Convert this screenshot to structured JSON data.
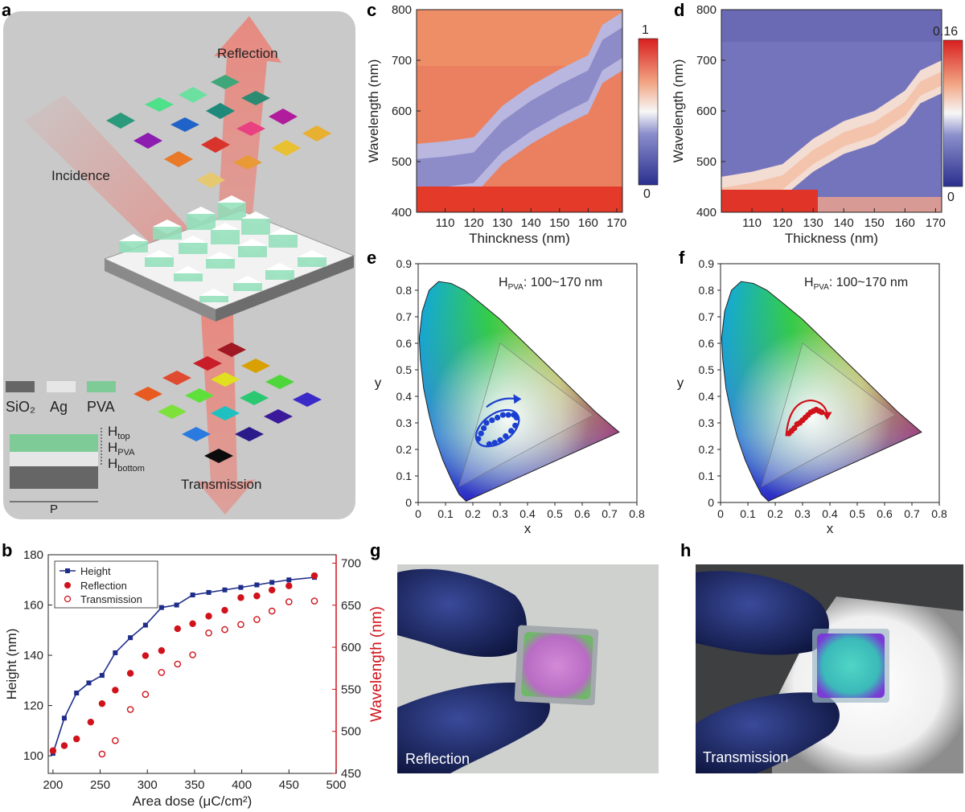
{
  "panels": {
    "a": {
      "label": "a",
      "arrows": {
        "reflection": "Reflection",
        "incidence": "Incidence",
        "transmission": "Transmission"
      },
      "legend": {
        "sio2": "SiO₂",
        "ag": "Ag",
        "pva": "PVA"
      },
      "layers": {
        "h_top": "H",
        "h_top_sub": "top",
        "h_pva": "H",
        "h_pva_sub": "PVA",
        "h_bottom": "H",
        "h_bottom_sub": "bottom",
        "period": "P"
      },
      "colors": {
        "sio2": "#666666",
        "ag": "#e6e6e6",
        "pva": "#7ecb97",
        "panel_bg": "#c9c9c9",
        "arrow": "#e8857e"
      }
    },
    "b": {
      "label": "b"
    },
    "c": {
      "label": "c",
      "colorbar_max": "1",
      "colorbar_min": "0"
    },
    "d": {
      "label": "d",
      "colorbar_max": "0.16",
      "colorbar_min": "0"
    },
    "e": {
      "label": "e",
      "annotation_prefix": "H",
      "annotation_sub": "PVA",
      "annotation_suffix": ": 100~170 nm"
    },
    "f": {
      "label": "f",
      "annotation_prefix": "H",
      "annotation_sub": "PVA",
      "annotation_suffix": ": 100~170 nm"
    },
    "g": {
      "label": "g",
      "caption": "Reflection"
    },
    "h": {
      "label": "h",
      "caption": "Transmission"
    }
  },
  "chart_data": [
    {
      "id": "b",
      "type": "line",
      "xlabel": "Area dose (μC/cm²)",
      "ylabel": "Height (nm)",
      "y2label": "Wavelength (nm)",
      "xlim": [
        195,
        500
      ],
      "ylim": [
        93,
        180
      ],
      "y2lim": [
        450,
        710
      ],
      "xticks": [
        "200",
        "250",
        "300",
        "350",
        "400",
        "450",
        "500"
      ],
      "yticks": [
        "100",
        "120",
        "140",
        "160",
        "180"
      ],
      "y2ticks": [
        "450",
        "500",
        "550",
        "600",
        "650",
        "700"
      ],
      "legend": [
        "Height",
        "Reflection",
        "Transmission"
      ],
      "colors": {
        "height": "#1f2d8a",
        "wavelength": "#d0121b"
      },
      "series": [
        {
          "name": "Height",
          "axis": "left",
          "x": [
            200,
            212,
            225,
            238,
            252,
            266,
            282,
            298,
            315,
            331,
            348,
            365,
            382,
            399,
            416,
            432,
            450,
            477
          ],
          "values": [
            101,
            115,
            125,
            129,
            132,
            141,
            147,
            152,
            159,
            160,
            164,
            165,
            166,
            167,
            168,
            169,
            170,
            171
          ]
        },
        {
          "name": "Reflection",
          "axis": "right",
          "x": [
            200,
            212,
            225,
            240,
            252,
            266,
            282,
            298,
            315,
            332,
            348,
            365,
            382,
            399,
            416,
            432,
            450,
            477
          ],
          "values": [
            477,
            483,
            491,
            511,
            533,
            549,
            569,
            590,
            596,
            622,
            628,
            637,
            644,
            659,
            661,
            668,
            673,
            685
          ]
        },
        {
          "name": "Transmission",
          "axis": "right",
          "x": [
            252,
            266,
            282,
            298,
            315,
            332,
            348,
            365,
            382,
            399,
            416,
            432,
            450,
            477
          ],
          "values": [
            473,
            489,
            526,
            544,
            570,
            580,
            591,
            617,
            621,
            627,
            633,
            643,
            654,
            655
          ]
        }
      ]
    },
    {
      "id": "c",
      "type": "heatmap",
      "xlabel": "Thinckness (nm)",
      "ylabel": "Wavelength (nm)",
      "xlim": [
        100,
        172
      ],
      "ylim": [
        400,
        800
      ],
      "xticks": [
        "110",
        "120",
        "130",
        "140",
        "150",
        "160",
        "170"
      ],
      "yticks": [
        "400",
        "500",
        "600",
        "700",
        "800"
      ],
      "colorbar": [
        0,
        1
      ],
      "minimum_band": {
        "thickness": [
          100,
          110,
          120,
          130,
          140,
          150,
          160,
          165,
          172
        ],
        "wavelength": [
          465,
          470,
          478,
          540,
          580,
          612,
          640,
          700,
          725
        ]
      }
    },
    {
      "id": "d",
      "type": "heatmap",
      "xlabel": "Thickness (nm)",
      "ylabel": "Wavelength (nm)",
      "xlim": [
        100,
        172
      ],
      "ylim": [
        400,
        800
      ],
      "xticks": [
        "110",
        "120",
        "130",
        "140",
        "150",
        "160",
        "170"
      ],
      "yticks": [
        "400",
        "500",
        "600",
        "700",
        "800"
      ],
      "colorbar": [
        0,
        0.16
      ],
      "peak_band": {
        "thickness": [
          100,
          110,
          120,
          130,
          140,
          150,
          160,
          165,
          172
        ],
        "wavelength": [
          430,
          440,
          455,
          505,
          540,
          560,
          600,
          640,
          660
        ]
      }
    },
    {
      "id": "e",
      "type": "scatter",
      "xlabel": "x",
      "ylabel": "y",
      "xlim": [
        0,
        0.8
      ],
      "ylim": [
        0,
        0.9
      ],
      "xticks": [
        "0",
        "0.1",
        "0.2",
        "0.3",
        "0.4",
        "0.5",
        "0.6",
        "0.7",
        "0.8"
      ],
      "yticks": [
        "0",
        "0.1",
        "0.2",
        "0.3",
        "0.4",
        "0.5",
        "0.6",
        "0.7",
        "0.8",
        "0.9"
      ],
      "color": "#1b3fd0",
      "x": [
        0.22,
        0.23,
        0.24,
        0.25,
        0.27,
        0.29,
        0.31,
        0.33,
        0.35,
        0.36,
        0.355,
        0.34,
        0.32,
        0.3,
        0.28,
        0.26
      ],
      "y": [
        0.24,
        0.26,
        0.28,
        0.3,
        0.31,
        0.32,
        0.33,
        0.33,
        0.33,
        0.32,
        0.29,
        0.27,
        0.25,
        0.235,
        0.225,
        0.22
      ]
    },
    {
      "id": "f",
      "type": "scatter",
      "xlabel": "x",
      "ylabel": "y",
      "xlim": [
        0,
        0.8
      ],
      "ylim": [
        0,
        0.9
      ],
      "xticks": [
        "0",
        "0.1",
        "0.2",
        "0.3",
        "0.4",
        "0.5",
        "0.6",
        "0.7",
        "0.8"
      ],
      "yticks": [
        "0",
        "0.1",
        "0.2",
        "0.3",
        "0.4",
        "0.5",
        "0.6",
        "0.7",
        "0.8",
        "0.9"
      ],
      "color": "#d0121b",
      "x": [
        0.25,
        0.26,
        0.27,
        0.28,
        0.29,
        0.3,
        0.31,
        0.32,
        0.33,
        0.34,
        0.35,
        0.36,
        0.37
      ],
      "y": [
        0.26,
        0.27,
        0.28,
        0.295,
        0.3,
        0.31,
        0.32,
        0.33,
        0.34,
        0.345,
        0.35,
        0.345,
        0.34
      ]
    }
  ]
}
